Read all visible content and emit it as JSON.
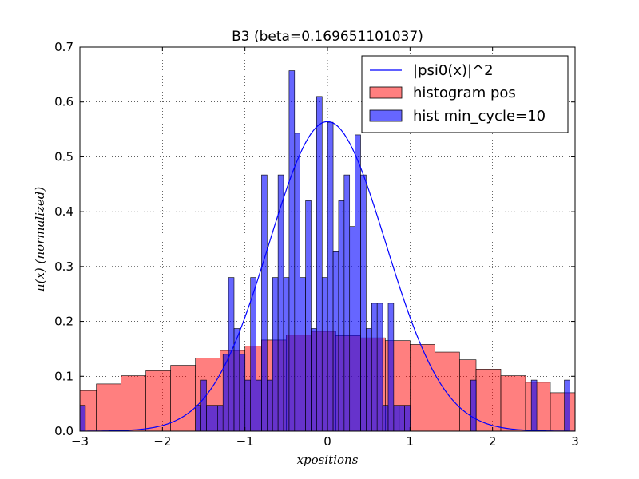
{
  "chart_data": {
    "type": "bar",
    "title": "B3 (beta=0.169651101037)",
    "xlabel": "xpositions",
    "ylabel": "π(x) (normalized)",
    "xlim": [
      -3,
      3
    ],
    "ylim": [
      0,
      0.7
    ],
    "xticks": [
      -3,
      -2,
      -1,
      0,
      1,
      2,
      3
    ],
    "xtick_labels": [
      "−3",
      "−2",
      "−1",
      "0",
      "1",
      "2",
      "3"
    ],
    "yticks": [
      0.0,
      0.1,
      0.2,
      0.3,
      0.4,
      0.5,
      0.6,
      0.7
    ],
    "ytick_labels": [
      "0.0",
      "0.1",
      "0.2",
      "0.3",
      "0.4",
      "0.5",
      "0.6",
      "0.7"
    ],
    "grid": true,
    "legend_position": "top-right",
    "colors": {
      "pos": "#ff0000",
      "mc": "#0000ff",
      "curve": "#0000ff"
    },
    "series": [
      {
        "name": "|psi0(x)|^2",
        "kind": "line",
        "function": "exp(-x^2)/sqrt(pi)"
      },
      {
        "name": "histogram pos",
        "kind": "hist",
        "edges": [
          -3.0,
          -2.8,
          -2.5,
          -2.2,
          -1.9,
          -1.6,
          -1.3,
          -1.0,
          -0.8,
          -0.5,
          -0.2,
          0.1,
          0.4,
          0.7,
          1.0,
          1.3,
          1.6,
          1.8,
          2.1,
          2.4,
          2.7,
          3.0
        ],
        "values": [
          0.074,
          0.086,
          0.101,
          0.11,
          0.12,
          0.133,
          0.147,
          0.155,
          0.166,
          0.175,
          0.182,
          0.174,
          0.17,
          0.165,
          0.158,
          0.144,
          0.13,
          0.113,
          0.101,
          0.089,
          0.07
        ]
      },
      {
        "name": "hist min_cycle=10",
        "kind": "hist",
        "start": -3.0,
        "bin_width": 0.0667,
        "values": [
          0.047,
          0,
          0,
          0,
          0,
          0,
          0,
          0,
          0,
          0,
          0,
          0,
          0,
          0,
          0,
          0,
          0,
          0,
          0,
          0,
          0,
          0.047,
          0.093,
          0.047,
          0.047,
          0.047,
          0.14,
          0.28,
          0.187,
          0.14,
          0.093,
          0.28,
          0.093,
          0.467,
          0.093,
          0.28,
          0.467,
          0.28,
          0.657,
          0.543,
          0.28,
          0.42,
          0.187,
          0.61,
          0.28,
          0.563,
          0.327,
          0.42,
          0.467,
          0.373,
          0.54,
          0.467,
          0.187,
          0.233,
          0.233,
          0.047,
          0.233,
          0.047,
          0.047,
          0.047,
          0,
          0,
          0,
          0,
          0,
          0,
          0,
          0,
          0,
          0,
          0,
          0.093,
          0,
          0,
          0,
          0,
          0,
          0,
          0,
          0,
          0,
          0,
          0.093,
          0,
          0,
          0,
          0,
          0,
          0.093,
          0
        ]
      }
    ]
  }
}
